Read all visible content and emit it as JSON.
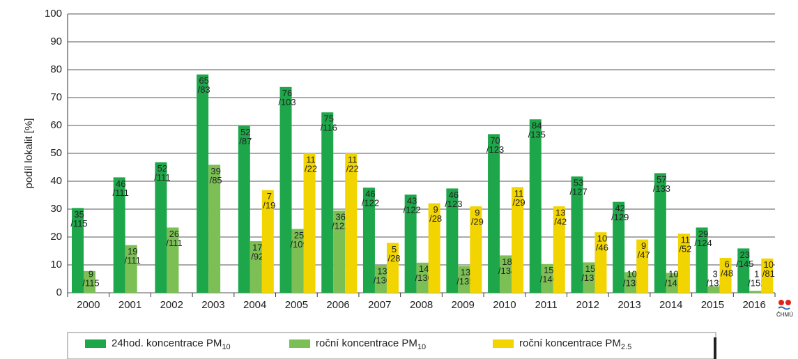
{
  "chart_data": {
    "type": "bar",
    "y_label": "podíl lokalit [%]",
    "categories": [
      "2000",
      "2001",
      "2002",
      "2003",
      "2004",
      "2005",
      "2006",
      "2007",
      "2008",
      "2009",
      "2010",
      "2011",
      "2012",
      "2013",
      "2014",
      "2015",
      "2016"
    ],
    "series": [
      {
        "name": "24hod. koncentrace PM",
        "name_subscript": "10",
        "color": "#1ea64b",
        "values": [
          30.4,
          41.4,
          46.8,
          78.3,
          59.8,
          73.8,
          64.7,
          37.7,
          35.2,
          37.4,
          56.9,
          62.2,
          41.7,
          32.6,
          42.9,
          23.4,
          15.9
        ],
        "value_labels": [
          [
            "35",
            "/115"
          ],
          [
            "46",
            "/111"
          ],
          [
            "52",
            "/111"
          ],
          [
            "65",
            "/83"
          ],
          [
            "52",
            "/87"
          ],
          [
            "76",
            "/103"
          ],
          [
            "75",
            "/116"
          ],
          [
            "46",
            "/122"
          ],
          [
            "43",
            "/122"
          ],
          [
            "46",
            "/123"
          ],
          [
            "70",
            "/123"
          ],
          [
            "84",
            "/135"
          ],
          [
            "53",
            "/127"
          ],
          [
            "42",
            "/129"
          ],
          [
            "57",
            "/133"
          ],
          [
            "29",
            "/124"
          ],
          [
            "23",
            "/145"
          ]
        ]
      },
      {
        "name": "roční koncentrace PM",
        "name_subscript": "10",
        "color": "#7cbf55",
        "values": [
          7.8,
          17.1,
          23.4,
          45.9,
          18.5,
          22.9,
          29.5,
          10.0,
          10.8,
          9.6,
          13.4,
          10.3,
          10.9,
          7.4,
          7.1,
          2.3,
          0.7
        ],
        "value_labels": [
          [
            "9",
            "/115"
          ],
          [
            "19",
            "/111"
          ],
          [
            "26",
            "/111"
          ],
          [
            "39",
            "/85"
          ],
          [
            "17",
            "/92"
          ],
          [
            "25",
            "/109"
          ],
          [
            "36",
            "/122"
          ],
          [
            "13",
            "/130"
          ],
          [
            "14",
            "/130"
          ],
          [
            "13",
            "/135"
          ],
          [
            "18",
            "/134"
          ],
          [
            "15",
            "/146"
          ],
          [
            "15",
            "/137"
          ],
          [
            "10",
            "/135"
          ],
          [
            "10",
            "/141"
          ],
          [
            "3",
            "/132"
          ],
          [
            "1",
            "/152"
          ]
        ]
      },
      {
        "name": "roční koncentrace PM",
        "name_subscript": "2.5",
        "color": "#f1d400",
        "values": [
          null,
          null,
          null,
          null,
          36.8,
          50,
          50,
          17.9,
          32.1,
          31.0,
          37.9,
          31.0,
          21.7,
          19.1,
          21.2,
          12.5,
          12.3
        ],
        "value_labels": [
          null,
          null,
          null,
          null,
          [
            "7",
            "/19"
          ],
          [
            "11",
            "/22"
          ],
          [
            "11",
            "/22"
          ],
          [
            "5",
            "/28"
          ],
          [
            "9",
            "/28"
          ],
          [
            "9",
            "/29"
          ],
          [
            "11",
            "/29"
          ],
          [
            "13",
            "/42"
          ],
          [
            "10",
            "/46"
          ],
          [
            "9",
            "/47"
          ],
          [
            "11",
            "/52"
          ],
          [
            "6",
            "/48"
          ],
          [
            "10",
            "/81"
          ]
        ]
      }
    ],
    "ylim": [
      0,
      100
    ],
    "yticks": [
      0,
      10,
      20,
      30,
      40,
      50,
      60,
      70,
      80,
      90,
      100
    ],
    "grid": true,
    "logo": "ČHMÚ"
  }
}
